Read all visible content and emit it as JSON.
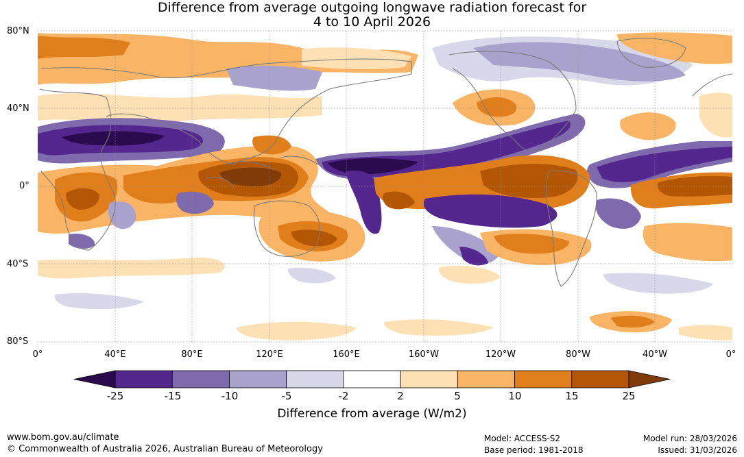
{
  "title": {
    "line1": "Difference from average outgoing longwave radiation forecast for",
    "line2": "4 to 10 April 2026"
  },
  "map": {
    "lat_labels": [
      "80°N",
      "40°N",
      "0°",
      "40°S",
      "80°S"
    ],
    "lon_labels": [
      "0°",
      "40°E",
      "80°E",
      "120°E",
      "160°E",
      "160°W",
      "120°W",
      "80°W",
      "40°W",
      "0°"
    ]
  },
  "colorbar": {
    "title": "Difference from average (W/m2)",
    "ticks": [
      "-25",
      "-15",
      "-10",
      "-5",
      "-2",
      "2",
      "5",
      "10",
      "15",
      "25"
    ],
    "colors": [
      "#2b0a4d",
      "#54278f",
      "#7e6aad",
      "#a9a2cd",
      "#d8d8eb",
      "#ffffff",
      "#fde0b4",
      "#f9b565",
      "#e07e1c",
      "#b35606",
      "#7f3b08"
    ]
  },
  "footer": {
    "url": "www.bom.gov.au/climate",
    "copyright": "© Commonwealth of Australia 2026, Australian Bureau of Meteorology",
    "model": "Model: ACCESS-S2",
    "base_period": "Base period: 1981-2018",
    "model_run": "Model run: 28/03/2026",
    "issued": "Issued: 31/03/2026"
  }
}
